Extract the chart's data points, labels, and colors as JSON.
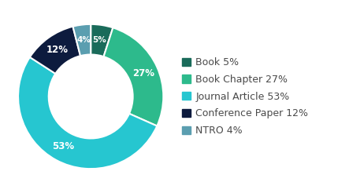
{
  "labels": [
    "Book",
    "Book Chapter",
    "Journal Article",
    "Conference Paper",
    "NTRO"
  ],
  "values": [
    5,
    27,
    53,
    12,
    4
  ],
  "colors": [
    "#1a6b5a",
    "#2dba8c",
    "#26c6d0",
    "#0d1b3e",
    "#5b9eb0"
  ],
  "pct_labels": [
    "5%",
    "27%",
    "53%",
    "12%",
    "4%"
  ],
  "legend_labels": [
    "Book 5%",
    "Book Chapter 27%",
    "Journal Article 53%",
    "Conference Paper 12%",
    "NTRO 4%"
  ],
  "background_color": "#ffffff",
  "text_color": "#4a4a4a",
  "font_size": 9,
  "wedge_edge_color": "#ffffff",
  "donut_width": 0.42
}
